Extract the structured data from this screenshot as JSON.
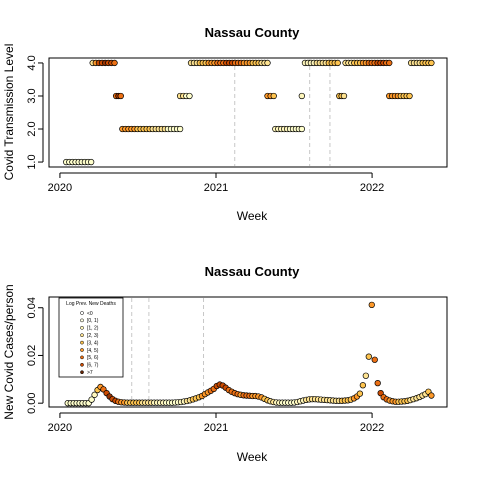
{
  "chart_data": [
    {
      "type": "scatter",
      "title": "Nassau County",
      "xlabel": "Week",
      "ylabel": "Covid Transmission Level",
      "xlim": [
        2019.93,
        2022.48
      ],
      "ylim": [
        0.85,
        4.15
      ],
      "x_ticks": [
        2020,
        2021,
        2022
      ],
      "x_tick_labels": [
        "2020",
        "2021",
        "2022"
      ],
      "y_ticks": [
        1,
        2,
        3,
        4
      ],
      "y_tick_labels": [
        "1.0",
        "2.0",
        "3.0",
        "4.0"
      ],
      "vlines": [
        2021.12,
        2021.6,
        2021.73
      ],
      "segments": [
        {
          "x_start": 2020.04,
          "x_end": 2020.2,
          "y": 1,
          "colors": [
            "#ffffcc"
          ]
        },
        {
          "x_start": 2020.21,
          "x_end": 2020.35,
          "y": 4,
          "colors": [
            "#fee391",
            "#fe9929",
            "#cc4c02",
            "#cc4c02",
            "#993404",
            "#cc4c02",
            "#cc4c02",
            "#ec7014"
          ]
        },
        {
          "x_start": 2020.36,
          "x_end": 2020.39,
          "y": 3,
          "colors": [
            "#ec7014",
            "#993404",
            "#ec7014"
          ]
        },
        {
          "x_start": 2020.4,
          "x_end": 2020.77,
          "y": 2,
          "colors": [
            "#fe9929",
            "#fec44f",
            "#fee391",
            "#ffffcc"
          ]
        },
        {
          "x_start": 2020.77,
          "x_end": 2020.83,
          "y": 3,
          "colors": [
            "#fee391",
            "#ffffcc"
          ]
        },
        {
          "x_start": 2020.84,
          "x_end": 2021.33,
          "y": 4,
          "colors": [
            "#fee391",
            "#fec44f",
            "#fe9929",
            "#ec7014",
            "#cc4c02",
            "#ec7014",
            "#fe9929",
            "#fec44f",
            "#fee391"
          ]
        },
        {
          "x_start": 2021.33,
          "x_end": 2021.37,
          "y": 3,
          "colors": [
            "#fe9929",
            "#fec44f"
          ]
        },
        {
          "x_start": 2021.38,
          "x_end": 2021.55,
          "y": 2,
          "colors": [
            "#fff7bc",
            "#ffffcc"
          ]
        },
        {
          "x_start": 2021.55,
          "x_end": 2021.55,
          "y": 3,
          "colors": [
            "#fff7bc"
          ]
        },
        {
          "x_start": 2021.57,
          "x_end": 2021.78,
          "y": 4,
          "colors": [
            "#fff7bc",
            "#fee391",
            "#fec44f"
          ]
        },
        {
          "x_start": 2021.79,
          "x_end": 2021.82,
          "y": 3,
          "colors": [
            "#fec44f",
            "#fee391"
          ]
        },
        {
          "x_start": 2021.83,
          "x_end": 2022.11,
          "y": 4,
          "colors": [
            "#fee391",
            "#fec44f",
            "#fe9929",
            "#ec7014",
            "#cc4c02",
            "#ec7014"
          ]
        },
        {
          "x_start": 2022.11,
          "x_end": 2022.24,
          "y": 3,
          "colors": [
            "#fe9929",
            "#fec44f"
          ]
        },
        {
          "x_start": 2022.25,
          "x_end": 2022.38,
          "y": 4,
          "colors": [
            "#fee391",
            "#fec44f"
          ]
        }
      ]
    },
    {
      "type": "scatter",
      "title": "Nassau County",
      "xlabel": "Week",
      "ylabel": "New Covid Cases/person",
      "xlim": [
        2019.93,
        2022.48
      ],
      "ylim": [
        -0.0016,
        0.0445
      ],
      "x_ticks": [
        2020,
        2021,
        2022
      ],
      "x_tick_labels": [
        "2020",
        "2021",
        "2022"
      ],
      "y_ticks": [
        0,
        0.02,
        0.04
      ],
      "y_tick_labels": [
        "0.00",
        "0.02",
        "0.04"
      ],
      "vlines": [
        2020.46,
        2020.57,
        2020.92
      ],
      "legend": {
        "title": "Log Prev. New Deaths",
        "position": "top-left",
        "entries": [
          "<0",
          "[0, 1)",
          "[1, 2)",
          "[2, 3)",
          "[3, 4)",
          "[4, 5)",
          "[5, 6)",
          "[6, 7)",
          ">7"
        ],
        "colors": [
          "#ffffff",
          "#ffffe5",
          "#fff7bc",
          "#fee391",
          "#fec44f",
          "#fe9929",
          "#ec7014",
          "#cc4c02",
          "#662506"
        ]
      },
      "points": [
        {
          "x": 2020.05,
          "y": 0.0,
          "color": "#ffffcc"
        },
        {
          "x": 2020.069,
          "y": 0.0,
          "color": "#ffffcc"
        },
        {
          "x": 2020.088,
          "y": 0.0,
          "color": "#ffffcc"
        },
        {
          "x": 2020.107,
          "y": 0.0,
          "color": "#ffffcc"
        },
        {
          "x": 2020.126,
          "y": 0.0,
          "color": "#ffffcc"
        },
        {
          "x": 2020.145,
          "y": 0.0,
          "color": "#ffffcc"
        },
        {
          "x": 2020.165,
          "y": 0.0,
          "color": "#ffffcc"
        },
        {
          "x": 2020.184,
          "y": 0.0,
          "color": "#ffffcc"
        },
        {
          "x": 2020.203,
          "y": 0.0015,
          "color": "#ffffcc"
        },
        {
          "x": 2020.222,
          "y": 0.0035,
          "color": "#fff7bc"
        },
        {
          "x": 2020.241,
          "y": 0.0055,
          "color": "#fec44f"
        },
        {
          "x": 2020.26,
          "y": 0.0068,
          "color": "#fe9929"
        },
        {
          "x": 2020.279,
          "y": 0.0058,
          "color": "#ec7014"
        },
        {
          "x": 2020.299,
          "y": 0.0042,
          "color": "#cc4c02"
        },
        {
          "x": 2020.318,
          "y": 0.0028,
          "color": "#993404"
        },
        {
          "x": 2020.337,
          "y": 0.0017,
          "color": "#cc4c02"
        },
        {
          "x": 2020.356,
          "y": 0.001,
          "color": "#cc4c02"
        },
        {
          "x": 2020.375,
          "y": 0.0006,
          "color": "#ec7014"
        },
        {
          "x": 2020.394,
          "y": 0.0004,
          "color": "#fe9929"
        },
        {
          "x": 2020.413,
          "y": 0.0003,
          "color": "#fe9929"
        },
        {
          "x": 2020.432,
          "y": 0.0002,
          "color": "#fec44f"
        },
        {
          "x": 2020.451,
          "y": 0.0002,
          "color": "#fec44f"
        },
        {
          "x": 2020.471,
          "y": 0.0002,
          "color": "#fec44f"
        },
        {
          "x": 2020.49,
          "y": 0.0002,
          "color": "#fec44f"
        },
        {
          "x": 2020.509,
          "y": 0.0002,
          "color": "#fec44f"
        },
        {
          "x": 2020.528,
          "y": 0.0002,
          "color": "#fee391"
        },
        {
          "x": 2020.547,
          "y": 0.0002,
          "color": "#fee391"
        },
        {
          "x": 2020.566,
          "y": 0.0002,
          "color": "#fee391"
        },
        {
          "x": 2020.585,
          "y": 0.0002,
          "color": "#fee391"
        },
        {
          "x": 2020.604,
          "y": 0.0002,
          "color": "#fff7bc"
        },
        {
          "x": 2020.623,
          "y": 0.0002,
          "color": "#fff7bc"
        },
        {
          "x": 2020.642,
          "y": 0.0002,
          "color": "#fff7bc"
        },
        {
          "x": 2020.662,
          "y": 0.0002,
          "color": "#fff7bc"
        },
        {
          "x": 2020.681,
          "y": 0.0002,
          "color": "#ffffcc"
        },
        {
          "x": 2020.7,
          "y": 0.0002,
          "color": "#ffffcc"
        },
        {
          "x": 2020.719,
          "y": 0.0002,
          "color": "#ffffcc"
        },
        {
          "x": 2020.738,
          "y": 0.0003,
          "color": "#ffffcc"
        },
        {
          "x": 2020.757,
          "y": 0.0004,
          "color": "#ffffcc"
        },
        {
          "x": 2020.776,
          "y": 0.0005,
          "color": "#fff7bc"
        },
        {
          "x": 2020.795,
          "y": 0.0007,
          "color": "#fff7bc"
        },
        {
          "x": 2020.814,
          "y": 0.0009,
          "color": "#fee391"
        },
        {
          "x": 2020.833,
          "y": 0.0012,
          "color": "#fee391"
        },
        {
          "x": 2020.852,
          "y": 0.0016,
          "color": "#fec44f"
        },
        {
          "x": 2020.871,
          "y": 0.002,
          "color": "#fec44f"
        },
        {
          "x": 2020.891,
          "y": 0.0025,
          "color": "#fec44f"
        },
        {
          "x": 2020.91,
          "y": 0.003,
          "color": "#fe9929"
        },
        {
          "x": 2020.929,
          "y": 0.0038,
          "color": "#fe9929"
        },
        {
          "x": 2020.948,
          "y": 0.0045,
          "color": "#fe9929"
        },
        {
          "x": 2020.967,
          "y": 0.0052,
          "color": "#ec7014"
        },
        {
          "x": 2020.986,
          "y": 0.006,
          "color": "#ec7014"
        },
        {
          "x": 2021.005,
          "y": 0.0072,
          "color": "#cc4c02"
        },
        {
          "x": 2021.024,
          "y": 0.0078,
          "color": "#cc4c02"
        },
        {
          "x": 2021.043,
          "y": 0.0074,
          "color": "#cc4c02"
        },
        {
          "x": 2021.062,
          "y": 0.0065,
          "color": "#cc4c02"
        },
        {
          "x": 2021.082,
          "y": 0.0055,
          "color": "#ec7014"
        },
        {
          "x": 2021.101,
          "y": 0.0048,
          "color": "#ec7014"
        },
        {
          "x": 2021.12,
          "y": 0.0042,
          "color": "#ec7014"
        },
        {
          "x": 2021.139,
          "y": 0.0038,
          "color": "#ec7014"
        },
        {
          "x": 2021.158,
          "y": 0.0035,
          "color": "#fe9929"
        },
        {
          "x": 2021.177,
          "y": 0.0033,
          "color": "#ec7014"
        },
        {
          "x": 2021.196,
          "y": 0.0032,
          "color": "#ec7014"
        },
        {
          "x": 2021.215,
          "y": 0.0031,
          "color": "#ec7014"
        },
        {
          "x": 2021.234,
          "y": 0.003,
          "color": "#fe9929"
        },
        {
          "x": 2021.253,
          "y": 0.003,
          "color": "#fe9929"
        },
        {
          "x": 2021.272,
          "y": 0.0028,
          "color": "#fe9929"
        },
        {
          "x": 2021.292,
          "y": 0.0024,
          "color": "#fe9929"
        },
        {
          "x": 2021.311,
          "y": 0.0018,
          "color": "#fec44f"
        },
        {
          "x": 2021.33,
          "y": 0.0012,
          "color": "#fec44f"
        },
        {
          "x": 2021.349,
          "y": 0.0008,
          "color": "#fee391"
        },
        {
          "x": 2021.368,
          "y": 0.0005,
          "color": "#fee391"
        },
        {
          "x": 2021.387,
          "y": 0.0003,
          "color": "#fff7bc"
        },
        {
          "x": 2021.406,
          "y": 0.0002,
          "color": "#fff7bc"
        },
        {
          "x": 2021.425,
          "y": 0.0002,
          "color": "#ffffcc"
        },
        {
          "x": 2021.444,
          "y": 0.0002,
          "color": "#ffffcc"
        },
        {
          "x": 2021.463,
          "y": 0.0002,
          "color": "#ffffcc"
        },
        {
          "x": 2021.483,
          "y": 0.0002,
          "color": "#ffffcc"
        },
        {
          "x": 2021.502,
          "y": 0.0003,
          "color": "#ffffcc"
        },
        {
          "x": 2021.521,
          "y": 0.0005,
          "color": "#fff7bc"
        },
        {
          "x": 2021.54,
          "y": 0.0008,
          "color": "#fff7bc"
        },
        {
          "x": 2021.559,
          "y": 0.0011,
          "color": "#fff7bc"
        },
        {
          "x": 2021.578,
          "y": 0.0014,
          "color": "#fee391"
        },
        {
          "x": 2021.597,
          "y": 0.0016,
          "color": "#fee391"
        },
        {
          "x": 2021.616,
          "y": 0.0017,
          "color": "#fee391"
        },
        {
          "x": 2021.635,
          "y": 0.0017,
          "color": "#fee391"
        },
        {
          "x": 2021.654,
          "y": 0.0016,
          "color": "#fee391"
        },
        {
          "x": 2021.673,
          "y": 0.0015,
          "color": "#fee391"
        },
        {
          "x": 2021.693,
          "y": 0.0014,
          "color": "#fee391"
        },
        {
          "x": 2021.712,
          "y": 0.0013,
          "color": "#fee391"
        },
        {
          "x": 2021.731,
          "y": 0.0012,
          "color": "#fee391"
        },
        {
          "x": 2021.75,
          "y": 0.0011,
          "color": "#fee391"
        },
        {
          "x": 2021.769,
          "y": 0.001,
          "color": "#fee391"
        },
        {
          "x": 2021.788,
          "y": 0.001,
          "color": "#fee391"
        },
        {
          "x": 2021.807,
          "y": 0.001,
          "color": "#fec44f"
        },
        {
          "x": 2021.826,
          "y": 0.0011,
          "color": "#fec44f"
        },
        {
          "x": 2021.845,
          "y": 0.0012,
          "color": "#fec44f"
        },
        {
          "x": 2021.864,
          "y": 0.0015,
          "color": "#fec44f"
        },
        {
          "x": 2021.884,
          "y": 0.002,
          "color": "#fe9929"
        },
        {
          "x": 2021.903,
          "y": 0.0028,
          "color": "#fe9929"
        },
        {
          "x": 2021.922,
          "y": 0.004,
          "color": "#fec44f"
        },
        {
          "x": 2021.941,
          "y": 0.0075,
          "color": "#fec44f"
        },
        {
          "x": 2021.96,
          "y": 0.0115,
          "color": "#fee391"
        },
        {
          "x": 2021.979,
          "y": 0.0195,
          "color": "#fec44f"
        },
        {
          "x": 2021.998,
          "y": 0.0412,
          "color": "#fe9929"
        },
        {
          "x": 2022.017,
          "y": 0.0182,
          "color": "#ec7014"
        },
        {
          "x": 2022.036,
          "y": 0.0084,
          "color": "#ec7014"
        },
        {
          "x": 2022.055,
          "y": 0.0042,
          "color": "#cc4c02"
        },
        {
          "x": 2022.074,
          "y": 0.0025,
          "color": "#ec7014"
        },
        {
          "x": 2022.094,
          "y": 0.0016,
          "color": "#ec7014"
        },
        {
          "x": 2022.113,
          "y": 0.0011,
          "color": "#fe9929"
        },
        {
          "x": 2022.132,
          "y": 0.0008,
          "color": "#fe9929"
        },
        {
          "x": 2022.151,
          "y": 0.0006,
          "color": "#fe9929"
        },
        {
          "x": 2022.17,
          "y": 0.0006,
          "color": "#fec44f"
        },
        {
          "x": 2022.189,
          "y": 0.0007,
          "color": "#fec44f"
        },
        {
          "x": 2022.208,
          "y": 0.0008,
          "color": "#fec44f"
        },
        {
          "x": 2022.227,
          "y": 0.001,
          "color": "#fec44f"
        },
        {
          "x": 2022.246,
          "y": 0.0013,
          "color": "#fee391"
        },
        {
          "x": 2022.265,
          "y": 0.0017,
          "color": "#fee391"
        },
        {
          "x": 2022.285,
          "y": 0.0021,
          "color": "#fee391"
        },
        {
          "x": 2022.304,
          "y": 0.0026,
          "color": "#fee391"
        },
        {
          "x": 2022.323,
          "y": 0.0032,
          "color": "#fee391"
        },
        {
          "x": 2022.342,
          "y": 0.0038,
          "color": "#fee391"
        },
        {
          "x": 2022.361,
          "y": 0.0048,
          "color": "#fec44f"
        },
        {
          "x": 2022.38,
          "y": 0.0032,
          "color": "#fe9929"
        }
      ]
    }
  ]
}
